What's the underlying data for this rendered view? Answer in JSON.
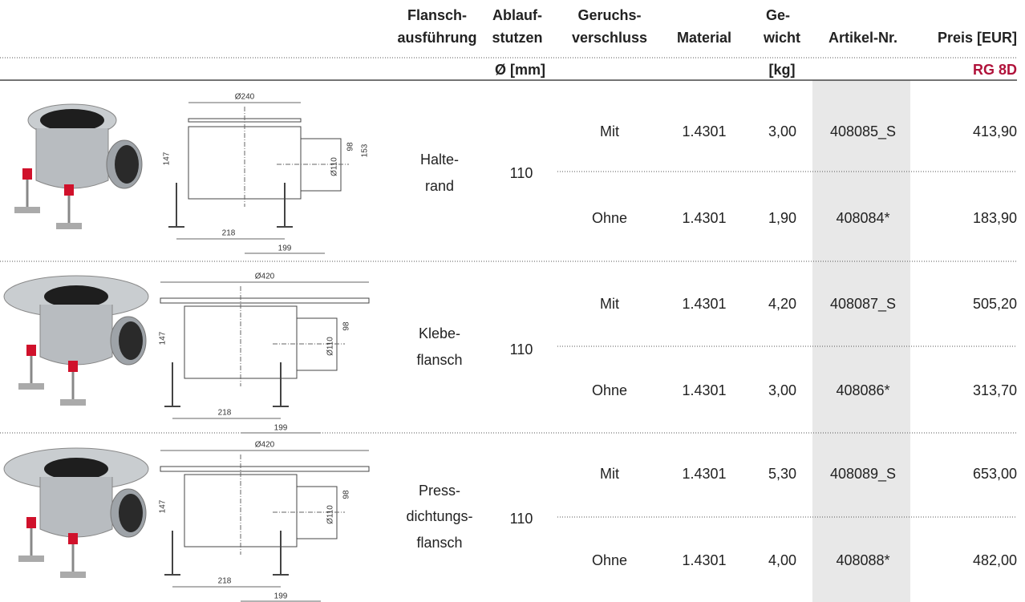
{
  "header": {
    "flange": [
      "Flansch-",
      "ausführung"
    ],
    "outlet": [
      "Ablauf-",
      "stutzen"
    ],
    "trap": [
      "Geruchs-",
      "verschluss"
    ],
    "material": "Material",
    "weight": [
      "Ge-",
      "wicht"
    ],
    "article": "Artikel-Nr.",
    "price": "Preis [EUR]"
  },
  "subheader": {
    "outlet_unit": "Ø [mm]",
    "weight_unit": "[kg]",
    "price_group": "RG 8D"
  },
  "rows": [
    {
      "flange": [
        "Halte-",
        "rand"
      ],
      "outlet": "110",
      "drawing": {
        "top": "Ø240",
        "height": "147",
        "depth": "98",
        "pipe": "Ø110",
        "total": "153",
        "width": "218",
        "offset": "199"
      },
      "variants": [
        {
          "trap": "Mit",
          "material": "1.4301",
          "weight": "3,00",
          "article": "408085_S",
          "price": "413,90"
        },
        {
          "trap": "Ohne",
          "material": "1.4301",
          "weight": "1,90",
          "article": "408084*",
          "price": "183,90"
        }
      ]
    },
    {
      "flange": [
        "Klebe-",
        "flansch"
      ],
      "outlet": "110",
      "drawing": {
        "top": "Ø420",
        "height": "147",
        "depth": "98",
        "pipe": "Ø110",
        "width": "218",
        "offset": "199"
      },
      "variants": [
        {
          "trap": "Mit",
          "material": "1.4301",
          "weight": "4,20",
          "article": "408087_S",
          "price": "505,20"
        },
        {
          "trap": "Ohne",
          "material": "1.4301",
          "weight": "3,00",
          "article": "408086*",
          "price": "313,70"
        }
      ]
    },
    {
      "flange": [
        "Press-",
        "dichtungs-",
        "flansch"
      ],
      "outlet": "110",
      "drawing": {
        "top": "Ø420",
        "height": "147",
        "depth": "98",
        "pipe": "Ø110",
        "width": "218",
        "offset": "199"
      },
      "variants": [
        {
          "trap": "Mit",
          "material": "1.4301",
          "weight": "5,30",
          "article": "408089_S",
          "price": "653,00"
        },
        {
          "trap": "Ohne",
          "material": "1.4301",
          "weight": "4,00",
          "article": "408088*",
          "price": "482,00"
        }
      ]
    }
  ]
}
